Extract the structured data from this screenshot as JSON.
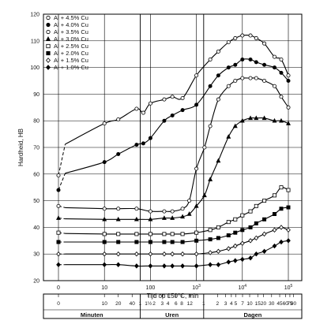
{
  "chart_data": {
    "type": "scatter",
    "xlabel": "Tijd op 150°C, min",
    "ylabel": "Hardheid, HB",
    "xscale": "log",
    "ylim": [
      20,
      120
    ],
    "yticks": [
      20,
      30,
      40,
      50,
      60,
      70,
      80,
      90,
      100,
      110,
      120
    ],
    "xticks": [
      {
        "label": "0",
        "value": 1,
        "power": ""
      },
      {
        "label": "10",
        "value": 10,
        "power": ""
      },
      {
        "label": "100",
        "value": 100,
        "power": ""
      },
      {
        "label": "10",
        "value": 1000,
        "power": "3"
      },
      {
        "label": "10",
        "value": 10000,
        "power": "4"
      },
      {
        "label": "10",
        "value": 100000,
        "power": "5"
      }
    ],
    "grid": true,
    "legend_position": "top-left",
    "series": [
      {
        "name": "Al + 4.5% Cu",
        "marker": "circle-open",
        "values": [
          [
            1,
            59.5
          ],
          [
            10,
            79
          ],
          [
            20,
            80.5
          ],
          [
            50,
            84.5
          ],
          [
            70,
            83
          ],
          [
            100,
            86.5
          ],
          [
            200,
            88
          ],
          [
            300,
            89
          ],
          [
            500,
            88.5
          ],
          [
            1000,
            97
          ],
          [
            2000,
            103
          ],
          [
            3000,
            106
          ],
          [
            5000,
            109.5
          ],
          [
            7000,
            111
          ],
          [
            10000,
            112
          ],
          [
            15000,
            112
          ],
          [
            20000,
            111
          ],
          [
            30000,
            109
          ],
          [
            50000,
            104
          ],
          [
            70000,
            103
          ],
          [
            100000,
            97
          ]
        ]
      },
      {
        "name": "Al + 4.0% Cu",
        "marker": "circle-filled",
        "values": [
          [
            1,
            54
          ],
          [
            10,
            64.5
          ],
          [
            20,
            67.5
          ],
          [
            50,
            71
          ],
          [
            70,
            71.5
          ],
          [
            100,
            73.5
          ],
          [
            200,
            80
          ],
          [
            300,
            82
          ],
          [
            500,
            84
          ],
          [
            1000,
            86
          ],
          [
            2000,
            93
          ],
          [
            3000,
            97
          ],
          [
            5000,
            100
          ],
          [
            7000,
            101
          ],
          [
            10000,
            103
          ],
          [
            15000,
            103
          ],
          [
            20000,
            102
          ],
          [
            30000,
            101
          ],
          [
            50000,
            100
          ],
          [
            70000,
            98
          ],
          [
            100000,
            95
          ]
        ]
      },
      {
        "name": "Al + 3.5% Cu",
        "marker": "circle-open",
        "values": [
          [
            1,
            48
          ],
          [
            10,
            47
          ],
          [
            20,
            47
          ],
          [
            50,
            47
          ],
          [
            100,
            46
          ],
          [
            200,
            46
          ],
          [
            300,
            46
          ],
          [
            500,
            47
          ],
          [
            700,
            50
          ],
          [
            1000,
            62
          ],
          [
            1500,
            70
          ],
          [
            2000,
            78
          ],
          [
            3000,
            88
          ],
          [
            5000,
            93
          ],
          [
            7000,
            95
          ],
          [
            10000,
            96
          ],
          [
            15000,
            96
          ],
          [
            20000,
            96
          ],
          [
            30000,
            95
          ],
          [
            50000,
            93
          ],
          [
            70000,
            89
          ],
          [
            100000,
            85
          ]
        ]
      },
      {
        "name": "Al + 3.0% Cu",
        "marker": "triangle-filled",
        "values": [
          [
            1,
            43.5
          ],
          [
            10,
            43
          ],
          [
            20,
            43
          ],
          [
            50,
            43
          ],
          [
            100,
            43
          ],
          [
            200,
            43.5
          ],
          [
            300,
            43.5
          ],
          [
            500,
            44
          ],
          [
            700,
            45
          ],
          [
            1000,
            48
          ],
          [
            1500,
            52
          ],
          [
            2000,
            58
          ],
          [
            3000,
            65
          ],
          [
            5000,
            74
          ],
          [
            7000,
            78
          ],
          [
            10000,
            80
          ],
          [
            15000,
            81
          ],
          [
            20000,
            81
          ],
          [
            30000,
            81
          ],
          [
            50000,
            80
          ],
          [
            70000,
            80
          ],
          [
            100000,
            79
          ]
        ]
      },
      {
        "name": "Al + 2.5% Cu",
        "marker": "square-open",
        "values": [
          [
            1,
            38
          ],
          [
            10,
            37.5
          ],
          [
            20,
            37.5
          ],
          [
            50,
            37.5
          ],
          [
            100,
            37.5
          ],
          [
            200,
            37.5
          ],
          [
            300,
            37.5
          ],
          [
            500,
            37.5
          ],
          [
            1000,
            38
          ],
          [
            2000,
            39
          ],
          [
            3000,
            40
          ],
          [
            5000,
            42
          ],
          [
            7000,
            43
          ],
          [
            10000,
            44.5
          ],
          [
            15000,
            46
          ],
          [
            20000,
            48
          ],
          [
            30000,
            50
          ],
          [
            50000,
            52
          ],
          [
            70000,
            55
          ],
          [
            100000,
            54
          ]
        ]
      },
      {
        "name": "Al + 2.0% Cu",
        "marker": "square-filled",
        "values": [
          [
            1,
            34.5
          ],
          [
            10,
            34.5
          ],
          [
            20,
            34.5
          ],
          [
            50,
            34.5
          ],
          [
            100,
            34.5
          ],
          [
            200,
            34.5
          ],
          [
            300,
            34.5
          ],
          [
            500,
            34.5
          ],
          [
            1000,
            35
          ],
          [
            2000,
            35.5
          ],
          [
            3000,
            36
          ],
          [
            5000,
            37
          ],
          [
            7000,
            38
          ],
          [
            10000,
            39
          ],
          [
            15000,
            40
          ],
          [
            20000,
            41.5
          ],
          [
            30000,
            43
          ],
          [
            50000,
            45
          ],
          [
            70000,
            47
          ],
          [
            100000,
            47.5
          ]
        ]
      },
      {
        "name": "Al + 1.5% Cu",
        "marker": "diamond-open",
        "values": [
          [
            1,
            30
          ],
          [
            10,
            30
          ],
          [
            20,
            30
          ],
          [
            50,
            30
          ],
          [
            100,
            30
          ],
          [
            200,
            30
          ],
          [
            300,
            30
          ],
          [
            500,
            30
          ],
          [
            1000,
            30
          ],
          [
            2000,
            30.5
          ],
          [
            3000,
            31
          ],
          [
            5000,
            32
          ],
          [
            7000,
            33
          ],
          [
            10000,
            34
          ],
          [
            15000,
            35
          ],
          [
            20000,
            36
          ],
          [
            30000,
            37.5
          ],
          [
            50000,
            39
          ],
          [
            70000,
            40
          ],
          [
            100000,
            39
          ]
        ]
      },
      {
        "name": "Al + 1.0% Cu",
        "marker": "diamond-filled",
        "values": [
          [
            1,
            26
          ],
          [
            10,
            26
          ],
          [
            20,
            26
          ],
          [
            50,
            25.5
          ],
          [
            100,
            25.5
          ],
          [
            200,
            25.5
          ],
          [
            300,
            25.5
          ],
          [
            500,
            25.5
          ],
          [
            1000,
            25.5
          ],
          [
            2000,
            26
          ],
          [
            3000,
            26
          ],
          [
            5000,
            27
          ],
          [
            7000,
            27.5
          ],
          [
            10000,
            28
          ],
          [
            15000,
            28.5
          ],
          [
            20000,
            30
          ],
          [
            30000,
            31
          ],
          [
            50000,
            33
          ],
          [
            70000,
            34.5
          ],
          [
            100000,
            35
          ]
        ]
      }
    ],
    "time_axis": {
      "minutes_title": "Minuten",
      "hours_title": "Uren",
      "days_title": "Dagen",
      "minutes_ticks": [
        {
          "label": "0",
          "value": 1
        },
        {
          "label": "10",
          "value": 10
        },
        {
          "label": "20",
          "value": 20
        },
        {
          "label": "40",
          "value": 40
        }
      ],
      "hours_ticks": [
        {
          "label": "1",
          "value": 60
        },
        {
          "label": "1½",
          "value": 90
        },
        {
          "label": "2",
          "value": 120
        },
        {
          "label": "3",
          "value": 180
        },
        {
          "label": "4",
          "value": 240
        },
        {
          "label": "6",
          "value": 360
        },
        {
          "label": "8",
          "value": 480
        },
        {
          "label": "12",
          "value": 720
        }
      ],
      "days_ticks": [
        {
          "label": "1",
          "value": 1440
        },
        {
          "label": "2",
          "value": 2880
        },
        {
          "label": "3",
          "value": 4320
        },
        {
          "label": "4",
          "value": 5760
        },
        {
          "label": "5",
          "value": 7200
        },
        {
          "label": "7",
          "value": 10080
        },
        {
          "label": "10",
          "value": 14400
        },
        {
          "label": "15",
          "value": 21600
        },
        {
          "label": "20",
          "value": 28800
        },
        {
          "label": "30",
          "value": 43200
        },
        {
          "label": "45",
          "value": 64800
        },
        {
          "label": "60",
          "value": 86400
        },
        {
          "label": "75",
          "value": 108000
        },
        {
          "label": "90",
          "value": 129600
        }
      ]
    }
  }
}
